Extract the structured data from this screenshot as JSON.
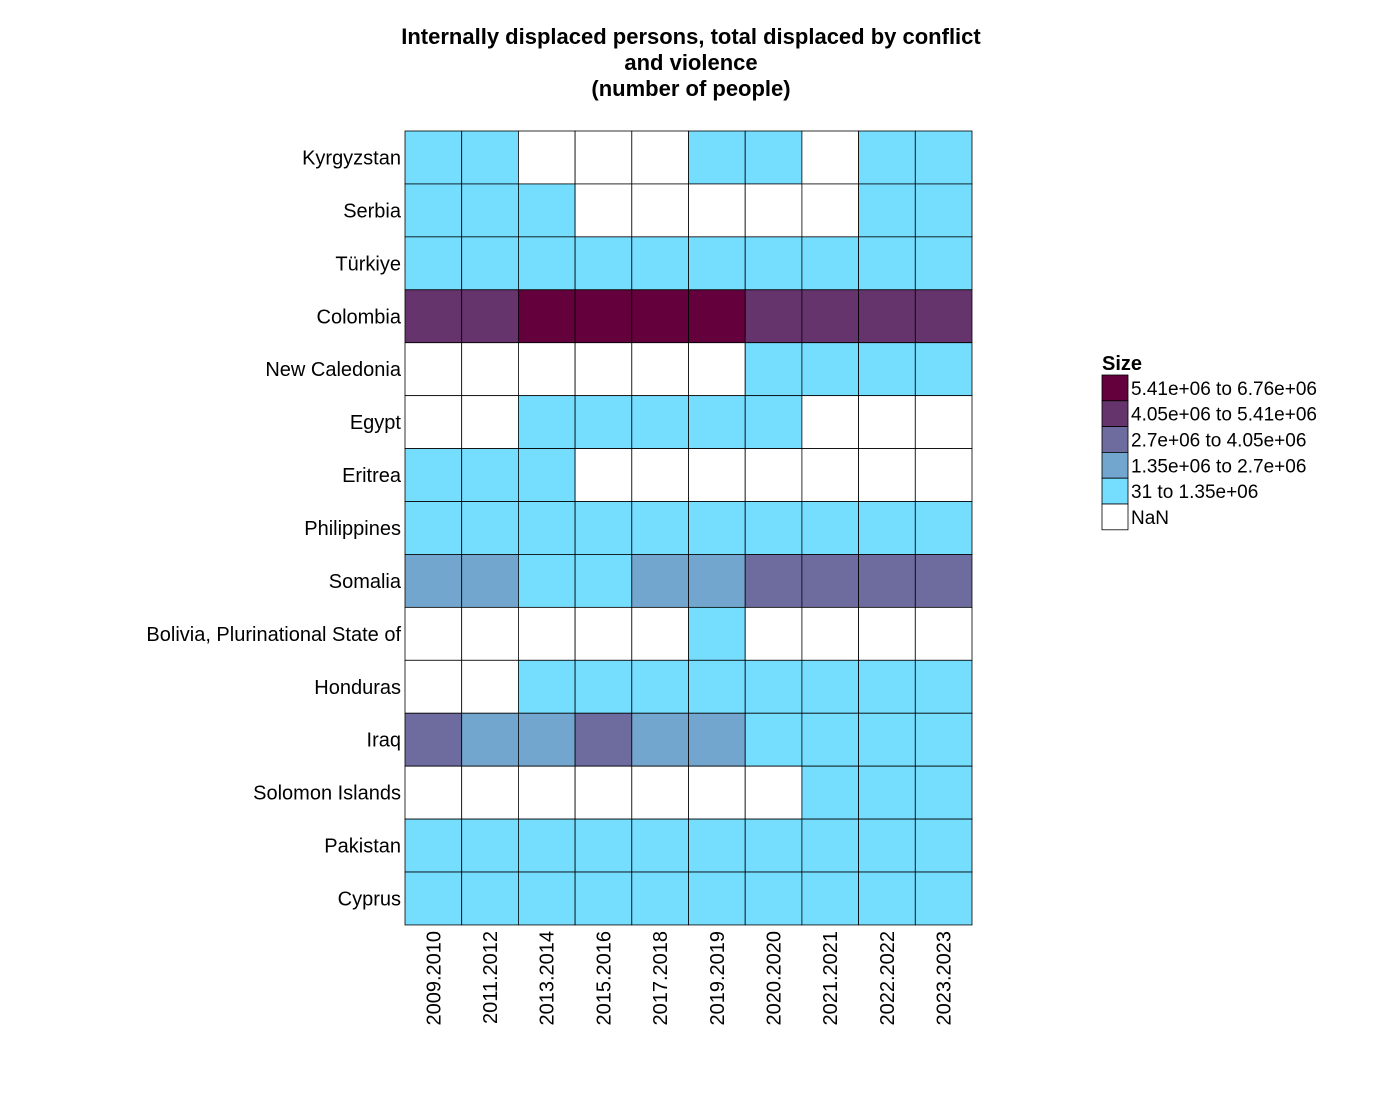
{
  "chart_data": {
    "type": "heatmap",
    "title": [
      "Internally displaced persons, total displaced by conflict",
      "and violence",
      "(number of people)"
    ],
    "columns": [
      "2009.2010",
      "2011.2012",
      "2013.2014",
      "2015.2016",
      "2017.2018",
      "2019.2019",
      "2020.2020",
      "2021.2021",
      "2022.2022",
      "2023.2023"
    ],
    "rows": [
      "Kyrgyzstan",
      "Serbia",
      "Türkiye",
      "Colombia",
      "New Caledonia",
      "Egypt",
      "Eritrea",
      "Philippines",
      "Somalia",
      "Bolivia, Plurinational State of",
      "Honduras",
      "Iraq",
      "Solomon Islands",
      "Pakistan",
      "Cyprus"
    ],
    "values": [
      [
        1,
        1,
        0,
        0,
        0,
        1,
        1,
        0,
        1,
        1
      ],
      [
        1,
        1,
        1,
        0,
        0,
        0,
        0,
        0,
        1,
        1
      ],
      [
        1,
        1,
        1,
        1,
        1,
        1,
        1,
        1,
        1,
        1
      ],
      [
        4,
        4,
        5,
        5,
        5,
        5,
        4,
        4,
        4,
        4
      ],
      [
        0,
        0,
        0,
        0,
        0,
        0,
        1,
        1,
        1,
        1
      ],
      [
        0,
        0,
        1,
        1,
        1,
        1,
        1,
        0,
        0,
        0
      ],
      [
        1,
        1,
        1,
        0,
        0,
        0,
        0,
        0,
        0,
        0
      ],
      [
        1,
        1,
        1,
        1,
        1,
        1,
        1,
        1,
        1,
        1
      ],
      [
        2,
        2,
        1,
        1,
        2,
        2,
        3,
        3,
        3,
        3
      ],
      [
        0,
        0,
        0,
        0,
        0,
        1,
        0,
        0,
        0,
        0
      ],
      [
        0,
        0,
        1,
        1,
        1,
        1,
        1,
        1,
        1,
        1
      ],
      [
        3,
        2,
        2,
        3,
        2,
        2,
        1,
        1,
        1,
        1
      ],
      [
        0,
        0,
        0,
        0,
        0,
        0,
        0,
        1,
        1,
        1
      ],
      [
        1,
        1,
        1,
        1,
        1,
        1,
        1,
        1,
        1,
        1
      ],
      [
        1,
        1,
        1,
        1,
        1,
        1,
        1,
        1,
        1,
        1
      ]
    ],
    "value_encoding": "legend bin index: 0 = NaN, 1 = 31 to 1.35e+06, 2 = 1.35e+06 to 2.7e+06, 3 = 2.7e+06 to 4.05e+06, 4 = 4.05e+06 to 5.41e+06, 5 = 5.41e+06 to 6.76e+06",
    "legend": {
      "title": "Size",
      "position": "right",
      "bins": [
        {
          "label": "5.41e+06  to  6.76e+06",
          "color": "#64003c"
        },
        {
          "label": "4.05e+06  to  5.41e+06",
          "color": "#66346c"
        },
        {
          "label": "2.7e+06  to  4.05e+06",
          "color": "#6e6c9e"
        },
        {
          "label": "1.35e+06  to  2.7e+06",
          "color": "#72a6cf"
        },
        {
          "label": "31  to  1.35e+06",
          "color": "#75ddfe"
        },
        {
          "label": "NaN",
          "color": "#ffffff"
        }
      ]
    },
    "bin_colors": [
      "#ffffff",
      "#75ddfe",
      "#72a6cf",
      "#6e6c9e",
      "#66346c",
      "#64003c"
    ],
    "grid": true
  }
}
